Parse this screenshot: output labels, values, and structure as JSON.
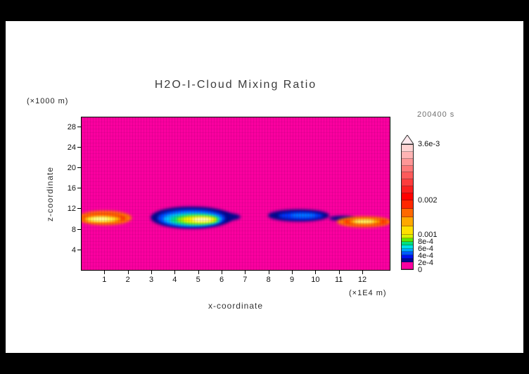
{
  "page": {
    "background": "#ffffff",
    "frame": "#000000"
  },
  "title": "H2O-I-Cloud Mixing Ratio",
  "timestamp": "200400 s",
  "axes": {
    "x_label": "x-coordinate",
    "x_unit": "(×1E4 m)",
    "y_label": "z-coordinate",
    "y_unit": "(×1000 m)",
    "x_ticks": [
      {
        "label": "1",
        "value": 1
      },
      {
        "label": "2",
        "value": 2
      },
      {
        "label": "3",
        "value": 3
      },
      {
        "label": "4",
        "value": 4
      },
      {
        "label": "5",
        "value": 5
      },
      {
        "label": "6",
        "value": 6
      },
      {
        "label": "7",
        "value": 7
      },
      {
        "label": "8",
        "value": 8
      },
      {
        "label": "9",
        "value": 9
      },
      {
        "label": "10",
        "value": 10
      },
      {
        "label": "11",
        "value": 11
      },
      {
        "label": "12",
        "value": 12
      }
    ],
    "y_ticks": [
      {
        "label": "4",
        "value": 4
      },
      {
        "label": "8",
        "value": 8
      },
      {
        "label": "12",
        "value": 12
      },
      {
        "label": "16",
        "value": 16
      },
      {
        "label": "20",
        "value": 20
      },
      {
        "label": "24",
        "value": 24
      },
      {
        "label": "28",
        "value": 28
      }
    ]
  },
  "colorbar": {
    "max": 0.0036,
    "arrow_color": "#ffe9ee",
    "labels": [
      {
        "text": "3.6e-3",
        "value": 0.0036
      },
      {
        "text": "0.002",
        "value": 0.002
      },
      {
        "text": "0.001",
        "value": 0.001
      },
      {
        "text": "8e-4",
        "value": 0.0008
      },
      {
        "text": "6e-4",
        "value": 0.0006
      },
      {
        "text": "4e-4",
        "value": 0.0004
      },
      {
        "text": "2e-4",
        "value": 0.0002
      },
      {
        "text": "0",
        "value": 0
      }
    ],
    "segments": [
      {
        "from": 0,
        "to": 0.0002,
        "color": "#fa00a0"
      },
      {
        "from": 0.0002,
        "to": 0.0003,
        "color": "#000890"
      },
      {
        "from": 0.0003,
        "to": 0.0004,
        "color": "#0010f0"
      },
      {
        "from": 0.0004,
        "to": 0.0005,
        "color": "#0058ff"
      },
      {
        "from": 0.0005,
        "to": 0.0006,
        "color": "#00a8ff"
      },
      {
        "from": 0.0006,
        "to": 0.0007,
        "color": "#00e0e8"
      },
      {
        "from": 0.0007,
        "to": 0.0008,
        "color": "#00e080"
      },
      {
        "from": 0.0008,
        "to": 0.0009,
        "color": "#60e800"
      },
      {
        "from": 0.0009,
        "to": 0.001,
        "color": "#d8f000"
      },
      {
        "from": 0.001,
        "to": 0.00125,
        "color": "#ffe000"
      },
      {
        "from": 0.00125,
        "to": 0.0015,
        "color": "#ffa800"
      },
      {
        "from": 0.0015,
        "to": 0.00175,
        "color": "#ff6800"
      },
      {
        "from": 0.00175,
        "to": 0.002,
        "color": "#ff2800"
      },
      {
        "from": 0.002,
        "to": 0.0022,
        "color": "#ff0000"
      },
      {
        "from": 0.0022,
        "to": 0.0024,
        "color": "#fa1e1e"
      },
      {
        "from": 0.0024,
        "to": 0.0026,
        "color": "#fc3c3c"
      },
      {
        "from": 0.0026,
        "to": 0.0028,
        "color": "#fd5a5a"
      },
      {
        "from": 0.0028,
        "to": 0.003,
        "color": "#fe7878"
      },
      {
        "from": 0.003,
        "to": 0.0032,
        "color": "#fe9696"
      },
      {
        "from": 0.0032,
        "to": 0.0034,
        "color": "#ffb4b4"
      },
      {
        "from": 0.0034,
        "to": 0.0036,
        "color": "#ffd2d2"
      }
    ]
  },
  "chart_data": {
    "type": "heatmap",
    "title": "H2O-I-Cloud Mixing Ratio",
    "xlabel": "x-coordinate",
    "ylabel": "z-coordinate",
    "x_unit": "×1E4 m",
    "y_unit": "×1000 m",
    "xlim": [
      0,
      13.2
    ],
    "ylim": [
      0,
      30
    ],
    "time": "200400 s",
    "background_value": 0,
    "background_color": "#fa00a0",
    "colorbar_ticks": [
      0,
      0.0002,
      0.0004,
      0.0006,
      0.0008,
      0.001,
      0.002,
      0.0036
    ],
    "clouds": [
      {
        "name": "left-cloud",
        "x_extent": [
          0,
          2.2
        ],
        "z_extent": [
          8.7,
          11.6
        ],
        "peak_value": 0.002,
        "core": "yellow-white in orange/red shell"
      },
      {
        "name": "center-cloud",
        "x_extent": [
          3.0,
          6.8
        ],
        "z_extent": [
          8.1,
          12.5
        ],
        "peak_value": 0.0036,
        "core": "white-yellow core ringed by green, cyan, blue, navy"
      },
      {
        "name": "right-center-cloud",
        "x_extent": [
          8.0,
          10.7
        ],
        "z_extent": [
          9.5,
          11.9
        ],
        "peak_value": 0.0008,
        "core": "weak, dark blue with lighter blue center"
      },
      {
        "name": "right-cloud",
        "x_extent": [
          10.8,
          13.2
        ],
        "z_extent": [
          8.3,
          10.5
        ],
        "peak_value": 0.002,
        "core": "yellow core in red/orange shell, navy tip at left end"
      }
    ],
    "blobs": [
      {
        "cx": 1.0,
        "cz": 10.2,
        "rx": 1.15,
        "rz": 1.35,
        "color": "#ff8000"
      },
      {
        "cx": 0.95,
        "cz": 10.1,
        "rx": 0.95,
        "rz": 0.9,
        "color": "#ff3000"
      },
      {
        "cx": 0.9,
        "cz": 10.0,
        "rx": 0.8,
        "rz": 0.6,
        "color": "#ffcc00"
      },
      {
        "cx": 0.85,
        "cz": 10.0,
        "rx": 0.6,
        "rz": 0.4,
        "color": "#ffff60"
      },
      {
        "cx": 0.8,
        "cz": 10.0,
        "rx": 0.35,
        "rz": 0.25,
        "color": "#ffffc0"
      },
      {
        "cx": 4.7,
        "cz": 10.3,
        "rx": 1.75,
        "rz": 2.2,
        "color": "#000890"
      },
      {
        "cx": 5.8,
        "cz": 10.5,
        "rx": 1.0,
        "rz": 0.9,
        "color": "#000890"
      },
      {
        "cx": 4.7,
        "cz": 10.2,
        "rx": 1.45,
        "rz": 1.7,
        "color": "#0048ff"
      },
      {
        "cx": 4.75,
        "cz": 10.0,
        "rx": 1.25,
        "rz": 1.3,
        "color": "#00c0ff"
      },
      {
        "cx": 4.85,
        "cz": 9.9,
        "rx": 1.05,
        "rz": 1.0,
        "color": "#00e080"
      },
      {
        "cx": 4.95,
        "cz": 9.9,
        "rx": 0.88,
        "rz": 0.78,
        "color": "#a0f000"
      },
      {
        "cx": 5.05,
        "cz": 9.9,
        "rx": 0.7,
        "rz": 0.58,
        "color": "#fff000"
      },
      {
        "cx": 5.15,
        "cz": 9.9,
        "rx": 0.42,
        "rz": 0.33,
        "color": "#ffffd8"
      },
      {
        "cx": 9.3,
        "cz": 10.7,
        "rx": 1.3,
        "rz": 1.15,
        "color": "#000890"
      },
      {
        "cx": 9.4,
        "cz": 10.7,
        "rx": 0.95,
        "rz": 0.7,
        "color": "#0038ff"
      },
      {
        "cx": 9.5,
        "cz": 10.7,
        "rx": 0.55,
        "rz": 0.4,
        "color": "#0080ff"
      },
      {
        "cx": 11.15,
        "cz": 10.2,
        "rx": 0.55,
        "rz": 0.5,
        "color": "#000890"
      },
      {
        "cx": 12.1,
        "cz": 9.5,
        "rx": 1.15,
        "rz": 1.0,
        "color": "#ff8000"
      },
      {
        "cx": 12.15,
        "cz": 9.5,
        "rx": 0.95,
        "rz": 0.65,
        "color": "#ff2800"
      },
      {
        "cx": 12.15,
        "cz": 9.5,
        "rx": 0.7,
        "rz": 0.42,
        "color": "#ffd800"
      },
      {
        "cx": 12.1,
        "cz": 9.55,
        "rx": 0.45,
        "rz": 0.27,
        "color": "#ffff90"
      }
    ]
  }
}
